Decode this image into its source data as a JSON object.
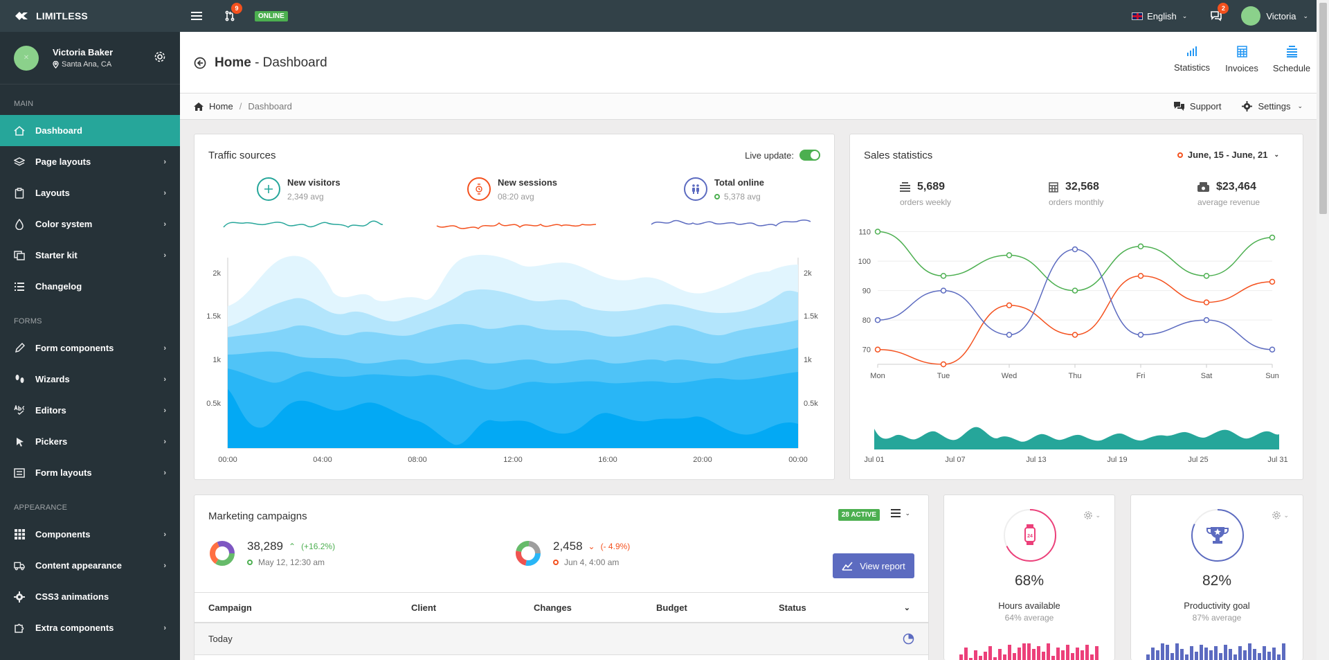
{
  "navbar": {
    "brand": "LIMITLESS",
    "updates_count": "9",
    "online_label": "ONLINE",
    "language": "English",
    "messages_count": "2",
    "user_name": "Victoria"
  },
  "sidebar": {
    "user": {
      "name": "Victoria Baker",
      "location": "Santa Ana, CA"
    },
    "sections": {
      "main": "Main",
      "forms": "Forms",
      "appearance": "Appearance"
    },
    "items": [
      {
        "label": "Dashboard"
      },
      {
        "label": "Page layouts"
      },
      {
        "label": "Layouts"
      },
      {
        "label": "Color system"
      },
      {
        "label": "Starter kit"
      },
      {
        "label": "Changelog"
      },
      {
        "label": "Form components"
      },
      {
        "label": "Wizards"
      },
      {
        "label": "Editors"
      },
      {
        "label": "Pickers"
      },
      {
        "label": "Form layouts"
      },
      {
        "label": "Components"
      },
      {
        "label": "Content appearance"
      },
      {
        "label": "CSS3 animations"
      },
      {
        "label": "Extra components"
      }
    ]
  },
  "header": {
    "title_main": "Home",
    "title_sub": "- Dashboard",
    "actions": [
      {
        "label": "Statistics"
      },
      {
        "label": "Invoices"
      },
      {
        "label": "Schedule"
      }
    ]
  },
  "breadcrumb": {
    "home": "Home",
    "sep": "/",
    "current": "Dashboard",
    "support": "Support",
    "settings": "Settings"
  },
  "traffic": {
    "title": "Traffic sources",
    "live_label": "Live update:",
    "stats": [
      {
        "name": "New visitors",
        "sub": "2,349 avg",
        "color": "#26a69a"
      },
      {
        "name": "New sessions",
        "sub": "08:20 avg",
        "color": "#f4511e"
      },
      {
        "name": "Total online",
        "sub": "5,378 avg",
        "color": "#5c6bc0"
      }
    ],
    "y_ticks": [
      "2k",
      "1.5k",
      "1k",
      "0.5k"
    ],
    "x_ticks": [
      "00:00",
      "04:00",
      "08:00",
      "12:00",
      "16:00",
      "20:00",
      "00:00"
    ]
  },
  "sales": {
    "title": "Sales statistics",
    "date_range": "June, 15 - June, 21",
    "stats": [
      {
        "value": "5,689",
        "label": "orders weekly"
      },
      {
        "value": "32,568",
        "label": "orders monthly"
      },
      {
        "value": "$23,464",
        "label": "average revenue"
      }
    ],
    "bottom_ticks": [
      "Jul 01",
      "Jul 07",
      "Jul 13",
      "Jul 19",
      "Jul 25",
      "Jul 31"
    ]
  },
  "chart_data": {
    "type": "line",
    "categories": [
      "Mon",
      "Tue",
      "Wed",
      "Thu",
      "Fri",
      "Sat",
      "Sun"
    ],
    "ylim": [
      65,
      112
    ],
    "y_ticks": [
      "110",
      "100",
      "90",
      "80",
      "70"
    ],
    "series": [
      {
        "color": "#4caf50",
        "values": [
          110,
          95,
          102,
          90,
          105,
          95,
          108
        ]
      },
      {
        "color": "#f4511e",
        "values": [
          70,
          65,
          85,
          75,
          95,
          86,
          93
        ]
      },
      {
        "color": "#5c6bc0",
        "values": [
          80,
          90,
          75,
          104,
          75,
          80,
          70
        ]
      }
    ]
  },
  "marketing": {
    "title": "Marketing campaigns",
    "badge": "28 ACTIVE",
    "left": {
      "value": "38,289",
      "change": "(+16.2%)",
      "date": "May 12, 12:30 am"
    },
    "right": {
      "value": "2,458",
      "change": "(- 4.9%)",
      "date": "Jun 4, 4:00 am"
    },
    "view_button": "View report",
    "columns": [
      "Campaign",
      "Client",
      "Changes",
      "Budget",
      "Status"
    ],
    "group_label": "Today"
  },
  "goals": [
    {
      "percent": "68%",
      "name": "Hours available",
      "sub": "64% average",
      "color": "#ec407a",
      "progress": 0.68
    },
    {
      "percent": "82%",
      "name": "Productivity goal",
      "sub": "87% average",
      "color": "#5c6bc0",
      "progress": 0.82
    }
  ]
}
